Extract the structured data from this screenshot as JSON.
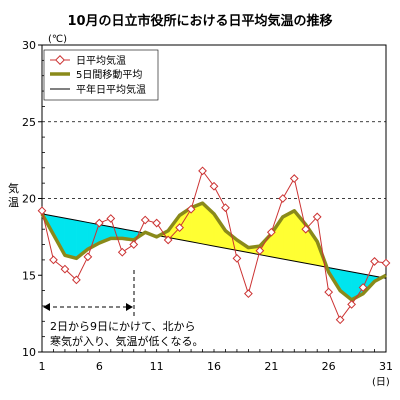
{
  "chart_data": {
    "type": "line",
    "title": "10月の日立市役所における日平均気温の推移",
    "unit_label": "(℃)",
    "ylabel": "気温",
    "x_unit_label": "(日)",
    "ylim": [
      10,
      30
    ],
    "xlim": [
      1,
      31
    ],
    "yticks": [
      10,
      15,
      20,
      25,
      30
    ],
    "xticks": [
      1,
      6,
      11,
      16,
      21,
      26,
      31
    ],
    "grid": "dashed horizontal at 20 and 25",
    "legend_position": "top-left",
    "x": [
      1,
      2,
      3,
      4,
      5,
      6,
      7,
      8,
      9,
      10,
      11,
      12,
      13,
      14,
      15,
      16,
      17,
      18,
      19,
      20,
      21,
      22,
      23,
      24,
      25,
      26,
      27,
      28,
      29,
      30,
      31
    ],
    "series": [
      {
        "name": "日平均気温",
        "color": "#cc3333",
        "values": [
          19.2,
          16.0,
          15.4,
          14.7,
          16.2,
          18.4,
          18.7,
          16.5,
          17.0,
          18.6,
          18.4,
          17.3,
          18.1,
          19.3,
          21.8,
          20.8,
          19.4,
          16.1,
          13.8,
          16.6,
          17.8,
          20.0,
          21.3,
          18.0,
          18.8,
          13.9,
          12.1,
          13.1,
          14.2,
          15.9,
          15.8
        ]
      },
      {
        "name": "5日間移動平均",
        "color": "#8a8a1a",
        "values": [
          null,
          null,
          16.3,
          16.1,
          16.7,
          17.1,
          17.4,
          17.4,
          17.3,
          17.8,
          17.5,
          17.9,
          18.9,
          19.4,
          19.7,
          19.0,
          17.9,
          17.3,
          16.8,
          16.9,
          17.7,
          18.8,
          19.2,
          18.3,
          17.2,
          15.2,
          14.0,
          13.4,
          13.8,
          14.6,
          15.0
        ]
      },
      {
        "name": "平年日平均気温",
        "color": "#000000",
        "values": [
          19.0,
          18.86,
          18.72,
          18.58,
          18.44,
          18.3,
          18.16,
          18.02,
          17.88,
          17.74,
          17.6,
          17.46,
          17.32,
          17.18,
          17.04,
          16.9,
          16.76,
          16.62,
          16.48,
          16.34,
          16.2,
          16.06,
          15.92,
          15.78,
          15.64,
          15.5,
          15.36,
          15.22,
          15.08,
          14.94,
          14.8
        ]
      }
    ],
    "fill_below_normal_color": "#00e5ee",
    "fill_above_normal_color": "#ffff33",
    "annotation": {
      "range": [
        1,
        9
      ],
      "text_line1": "2日から9日にかけて、北から",
      "text_line2": "寒気が入り、気温が低くなる。"
    }
  }
}
